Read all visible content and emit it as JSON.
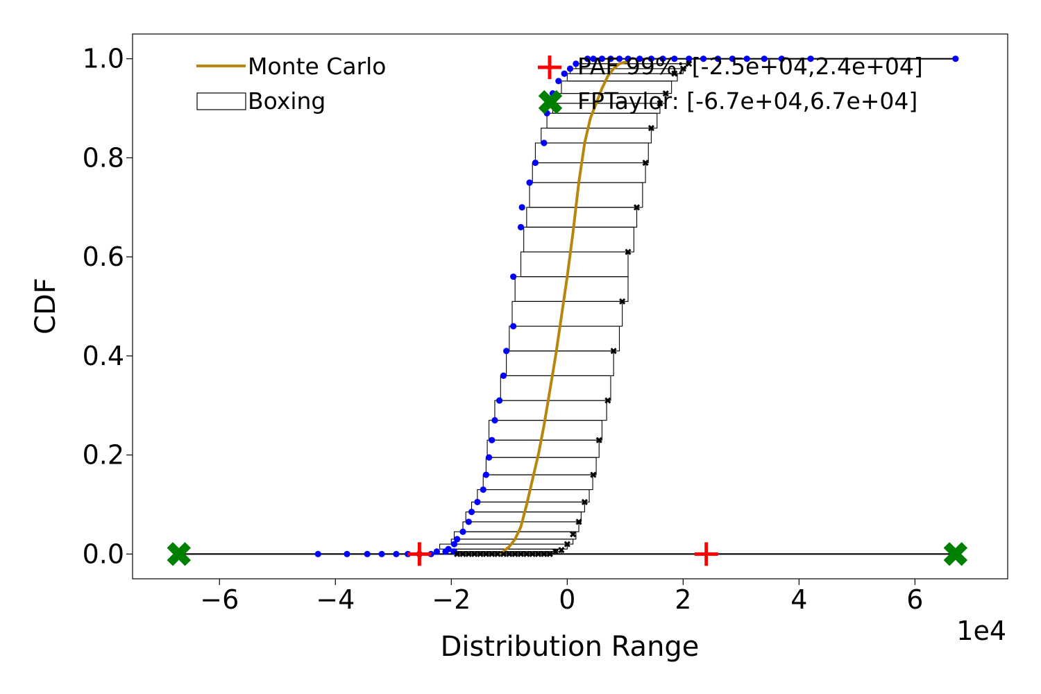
{
  "chart_data": {
    "type": "line",
    "xlabel": "Distribution Range",
    "ylabel": "CDF",
    "x_exponent_label": "1e4",
    "x_scale_factor": 10000,
    "xlim": [
      -75000,
      76000
    ],
    "ylim": [
      -0.05,
      1.05
    ],
    "x_ticks": [
      -60000,
      -40000,
      -20000,
      0,
      20000,
      40000,
      60000
    ],
    "x_tick_labels": [
      "−6",
      "−4",
      "−2",
      "0",
      "2",
      "4",
      "6"
    ],
    "y_ticks": [
      0.0,
      0.2,
      0.4,
      0.6,
      0.8,
      1.0
    ],
    "y_tick_labels": [
      "0.0",
      "0.2",
      "0.4",
      "0.6",
      "0.8",
      "1.0"
    ],
    "grid": false,
    "legend_placement": "top",
    "colors": {
      "monte_carlo": "#b8860b",
      "boxing": "#000000",
      "lower_points": "#0000ff",
      "upper_points": "#000000",
      "paf": "#ff0000",
      "fptaylor": "#008000"
    },
    "legend": {
      "monte_carlo": "Monte Carlo",
      "boxing": "Boxing",
      "paf": "PAF 99%: [-2.5e+04,2.4e+04]",
      "fptaylor": "FPTaylor: [-6.7e+04,6.7e+04]"
    },
    "series": [
      {
        "name": "Monte Carlo",
        "kind": "line",
        "points": [
          [
            -12000,
            0.0
          ],
          [
            -11000,
            0.005
          ],
          [
            -10000,
            0.015
          ],
          [
            -9000,
            0.03
          ],
          [
            -8000,
            0.055
          ],
          [
            -7000,
            0.1
          ],
          [
            -6000,
            0.15
          ],
          [
            -5000,
            0.2
          ],
          [
            -4000,
            0.26
          ],
          [
            -3000,
            0.33
          ],
          [
            -2000,
            0.4
          ],
          [
            -1000,
            0.48
          ],
          [
            0,
            0.56
          ],
          [
            1000,
            0.65
          ],
          [
            2000,
            0.75
          ],
          [
            3000,
            0.83
          ],
          [
            4000,
            0.88
          ],
          [
            5000,
            0.91
          ],
          [
            6000,
            0.94
          ],
          [
            7000,
            0.965
          ],
          [
            8000,
            0.98
          ],
          [
            9000,
            0.99
          ],
          [
            10500,
            0.995
          ]
        ]
      },
      {
        "name": "Boxing",
        "kind": "boxes",
        "boxes": [
          [
            -67000,
            67000,
            0.0,
            0.0
          ],
          [
            -20000,
            -1000,
            0.0,
            0.005
          ],
          [
            -21000,
            -2000,
            0.005,
            0.01
          ],
          [
            -22000,
            0,
            0.01,
            0.02
          ],
          [
            -20000,
            1000,
            0.02,
            0.03
          ],
          [
            -19500,
            1500,
            0.03,
            0.045
          ],
          [
            -18000,
            2000,
            0.045,
            0.065
          ],
          [
            -17500,
            2400,
            0.065,
            0.085
          ],
          [
            -16500,
            3000,
            0.085,
            0.105
          ],
          [
            -15500,
            3800,
            0.105,
            0.13
          ],
          [
            -14500,
            4400,
            0.13,
            0.16
          ],
          [
            -14000,
            5000,
            0.16,
            0.195
          ],
          [
            -13800,
            5500,
            0.195,
            0.23
          ],
          [
            -13500,
            6000,
            0.23,
            0.27
          ],
          [
            -12500,
            6800,
            0.27,
            0.31
          ],
          [
            -11500,
            7500,
            0.31,
            0.36
          ],
          [
            -10500,
            8000,
            0.36,
            0.41
          ],
          [
            -10000,
            9000,
            0.41,
            0.46
          ],
          [
            -9500,
            9500,
            0.46,
            0.51
          ],
          [
            -9000,
            10500,
            0.51,
            0.56
          ],
          [
            -8000,
            10500,
            0.56,
            0.61
          ],
          [
            -7500,
            11500,
            0.61,
            0.66
          ],
          [
            -7000,
            12000,
            0.66,
            0.7
          ],
          [
            -6500,
            13000,
            0.7,
            0.75
          ],
          [
            -6000,
            13500,
            0.75,
            0.79
          ],
          [
            -5500,
            14000,
            0.79,
            0.83
          ],
          [
            -4500,
            14500,
            0.83,
            0.86
          ],
          [
            -3500,
            15500,
            0.86,
            0.89
          ],
          [
            -2500,
            16000,
            0.89,
            0.91
          ],
          [
            -2000,
            17000,
            0.91,
            0.93
          ],
          [
            -1000,
            18000,
            0.93,
            0.955
          ],
          [
            0,
            19000,
            0.955,
            0.97
          ],
          [
            500,
            20000,
            0.97,
            0.98
          ],
          [
            1500,
            20500,
            0.98,
            0.99
          ],
          [
            2500,
            21000,
            0.99,
            1.0
          ],
          [
            3500,
            67000,
            1.0,
            1.0
          ]
        ]
      },
      {
        "name": "lower endpoints",
        "kind": "scatter",
        "points": [
          [
            -67000,
            0.0
          ],
          [
            -43000,
            0.0
          ],
          [
            -38000,
            0.0
          ],
          [
            -34500,
            0.0
          ],
          [
            -32000,
            0.0
          ],
          [
            -29500,
            0.0
          ],
          [
            -27500,
            0.0
          ],
          [
            -25500,
            0.0
          ],
          [
            -23500,
            0.0
          ],
          [
            -22500,
            0.005
          ],
          [
            -21000,
            0.005
          ],
          [
            -19500,
            0.005
          ],
          [
            -20500,
            0.01
          ],
          [
            -19500,
            0.02
          ],
          [
            -19000,
            0.03
          ],
          [
            -18000,
            0.045
          ],
          [
            -17000,
            0.065
          ],
          [
            -16500,
            0.085
          ],
          [
            -15500,
            0.105
          ],
          [
            -14500,
            0.13
          ],
          [
            -14000,
            0.16
          ],
          [
            -13500,
            0.195
          ],
          [
            -13000,
            0.23
          ],
          [
            -12500,
            0.27
          ],
          [
            -11700,
            0.31
          ],
          [
            -11000,
            0.36
          ],
          [
            -10500,
            0.41
          ],
          [
            -9300,
            0.46
          ],
          [
            -9300,
            0.56
          ],
          [
            -8000,
            0.66
          ],
          [
            -7800,
            0.7
          ],
          [
            -6500,
            0.75
          ],
          [
            -5500,
            0.79
          ],
          [
            -4000,
            0.83
          ],
          [
            -3500,
            0.89
          ],
          [
            -3000,
            0.91
          ],
          [
            -2500,
            0.93
          ],
          [
            -1500,
            0.955
          ],
          [
            -500,
            0.97
          ],
          [
            500,
            0.98
          ],
          [
            1500,
            0.99
          ],
          [
            3500,
            1.0
          ],
          [
            4500,
            1.0
          ],
          [
            6000,
            1.0
          ],
          [
            7500,
            1.0
          ],
          [
            9000,
            1.0
          ],
          [
            10500,
            1.0
          ],
          [
            12500,
            1.0
          ],
          [
            14500,
            1.0
          ],
          [
            16500,
            1.0
          ],
          [
            18500,
            1.0
          ],
          [
            21000,
            1.0
          ],
          [
            23500,
            1.0
          ],
          [
            26000,
            1.0
          ],
          [
            28500,
            1.0
          ],
          [
            31000,
            1.0
          ],
          [
            34000,
            1.0
          ],
          [
            37000,
            1.0
          ],
          [
            42000,
            1.0
          ],
          [
            67000,
            1.0
          ]
        ]
      },
      {
        "name": "upper endpoints",
        "kind": "scatter",
        "points": [
          [
            -19000,
            0.0
          ],
          [
            -18000,
            0.0
          ],
          [
            -17000,
            0.0
          ],
          [
            -16000,
            0.0
          ],
          [
            -15000,
            0.0
          ],
          [
            -14000,
            0.0
          ],
          [
            -13000,
            0.0
          ],
          [
            -12000,
            0.0
          ],
          [
            -11000,
            0.0
          ],
          [
            -10000,
            0.0
          ],
          [
            -9000,
            0.0
          ],
          [
            -8000,
            0.0
          ],
          [
            -7000,
            0.0
          ],
          [
            -6000,
            0.0
          ],
          [
            -5000,
            0.0
          ],
          [
            -4000,
            0.0
          ],
          [
            -3000,
            0.0
          ],
          [
            -2000,
            0.005
          ],
          [
            -1000,
            0.008
          ],
          [
            0,
            0.02
          ],
          [
            1000,
            0.04
          ],
          [
            2000,
            0.065
          ],
          [
            3000,
            0.105
          ],
          [
            4500,
            0.16
          ],
          [
            5500,
            0.23
          ],
          [
            7000,
            0.31
          ],
          [
            8000,
            0.41
          ],
          [
            9500,
            0.51
          ],
          [
            10500,
            0.61
          ],
          [
            12000,
            0.7
          ],
          [
            13500,
            0.79
          ],
          [
            14500,
            0.86
          ],
          [
            16000,
            0.91
          ],
          [
            17000,
            0.93
          ],
          [
            18500,
            0.97
          ],
          [
            20000,
            0.98
          ],
          [
            21000,
            0.99
          ]
        ]
      },
      {
        "name": "PAF 99%: [-2.5e+04,2.4e+04]",
        "kind": "marker",
        "points": [
          [
            -25500,
            0.0
          ],
          [
            24000,
            0.0
          ]
        ]
      },
      {
        "name": "FPTaylor: [-6.7e+04,6.7e+04]",
        "kind": "marker",
        "points": [
          [
            -67000,
            0.0
          ],
          [
            67000,
            0.0
          ]
        ]
      }
    ]
  }
}
